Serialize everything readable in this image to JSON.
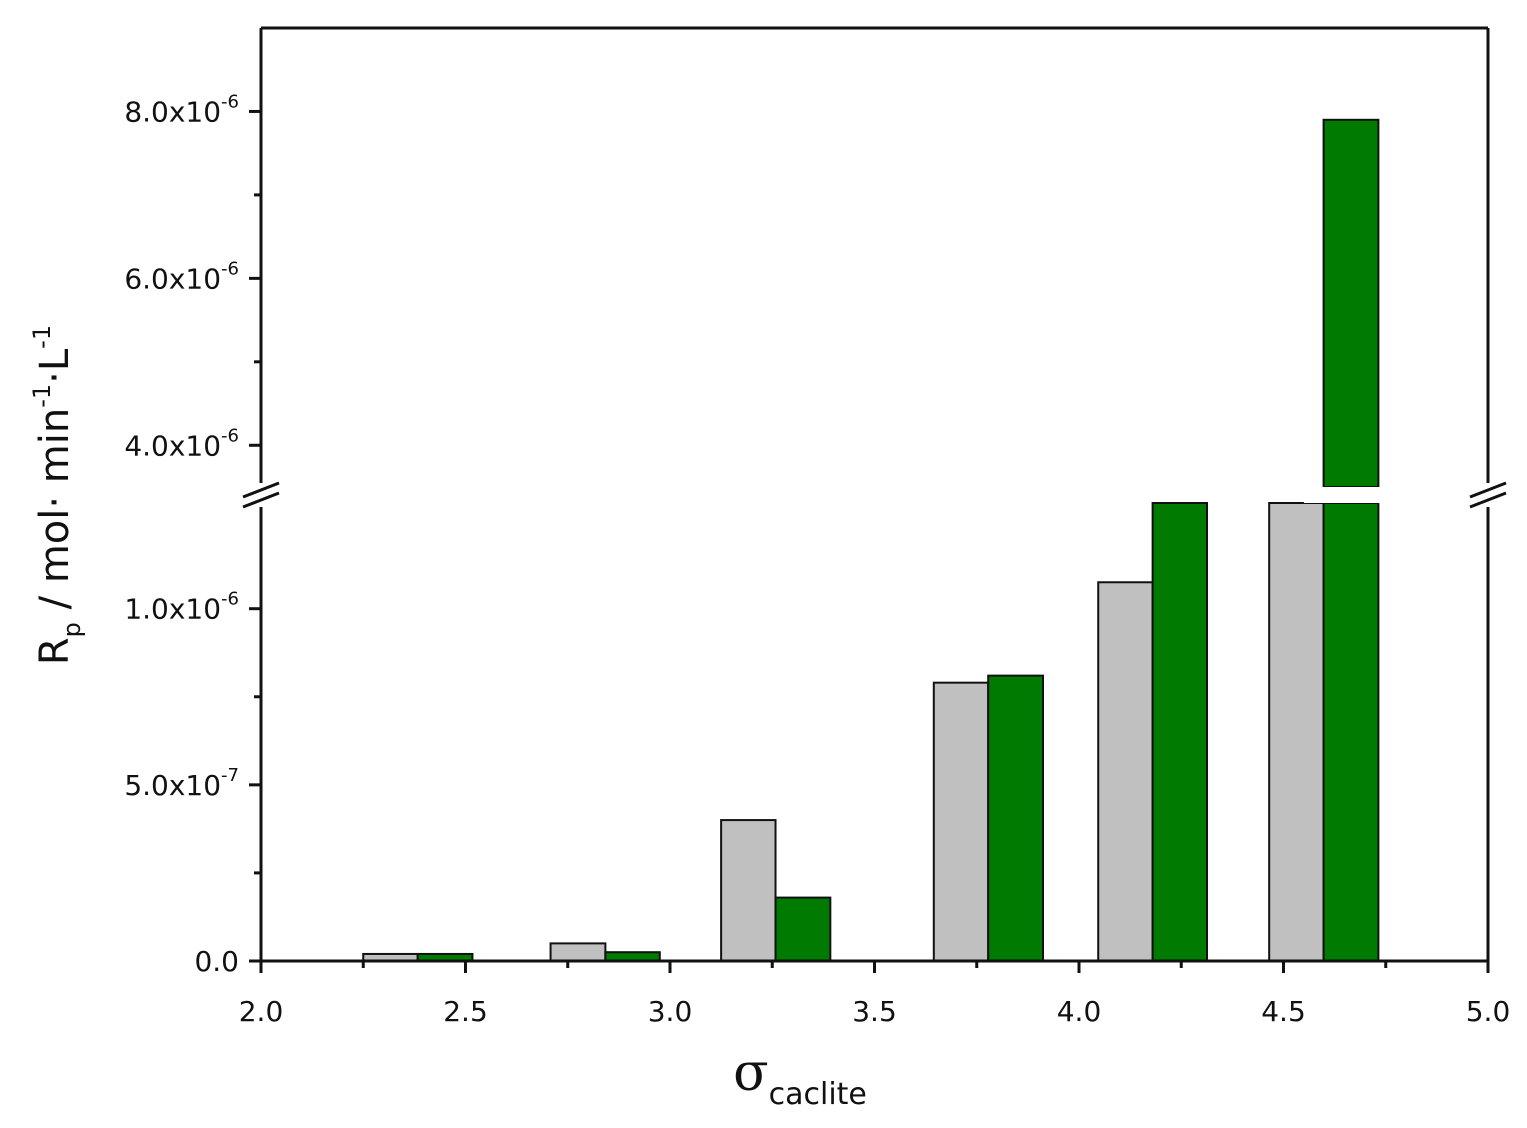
{
  "chart_data": {
    "type": "bar",
    "xlim": [
      2.0,
      5.0
    ],
    "x_ticks": [
      "2.0",
      "2.5",
      "3.0",
      "3.5",
      "4.0",
      "4.5",
      "5.0"
    ],
    "y_axis_break": [
      1.3e-06,
      3.5e-06
    ],
    "ylim_lower": [
      0,
      1.3e-06
    ],
    "ylim_upper": [
      3.5e-06,
      9e-06
    ],
    "y_ticks_lower": [
      {
        "value": 0.0,
        "mantissa": "0.0",
        "exponent": ""
      },
      {
        "value": 5e-07,
        "mantissa": "5.0x10",
        "exponent": "-7"
      },
      {
        "value": 1e-06,
        "mantissa": "1.0x10",
        "exponent": "-6"
      }
    ],
    "y_ticks_upper": [
      {
        "value": 4e-06,
        "mantissa": "4.0x10",
        "exponent": "-6"
      },
      {
        "value": 6e-06,
        "mantissa": "6.0x10",
        "exponent": "-6"
      },
      {
        "value": 8e-06,
        "mantissa": "8.0x10",
        "exponent": "-6"
      }
    ],
    "xlabel": {
      "symbol": "σ",
      "subscript": "caclite"
    },
    "ylabel": {
      "base": "R",
      "sub": "p",
      "unit1": " / mol· min",
      "sup1": "-1",
      "unit2": "·L",
      "sup2": "-1"
    },
    "grid": false,
    "series": [
      {
        "color": "#c0c0c0",
        "bars": [
          {
            "x0": 2.25,
            "x1": 2.383,
            "value": 2e-08
          },
          {
            "x0": 2.708,
            "x1": 2.842,
            "value": 5e-08
          },
          {
            "x0": 3.125,
            "x1": 3.258,
            "value": 4e-07
          },
          {
            "x0": 3.645,
            "x1": 3.778,
            "value": 7.9e-07
          },
          {
            "x0": 4.047,
            "x1": 4.18,
            "value": 1.075e-06
          },
          {
            "x0": 4.465,
            "x1": 4.598,
            "value": 1.4e-06
          }
        ]
      },
      {
        "color": "#007a00",
        "bars": [
          {
            "x0": 2.383,
            "x1": 2.517,
            "value": 2e-08
          },
          {
            "x0": 2.842,
            "x1": 2.975,
            "value": 2.5e-08
          },
          {
            "x0": 3.258,
            "x1": 3.392,
            "value": 1.8e-07
          },
          {
            "x0": 3.778,
            "x1": 3.912,
            "value": 8.1e-07
          },
          {
            "x0": 4.18,
            "x1": 4.313,
            "value": 1.4e-06
          },
          {
            "x0": 4.598,
            "x1": 4.732,
            "value": 7.9e-06
          }
        ]
      }
    ]
  }
}
